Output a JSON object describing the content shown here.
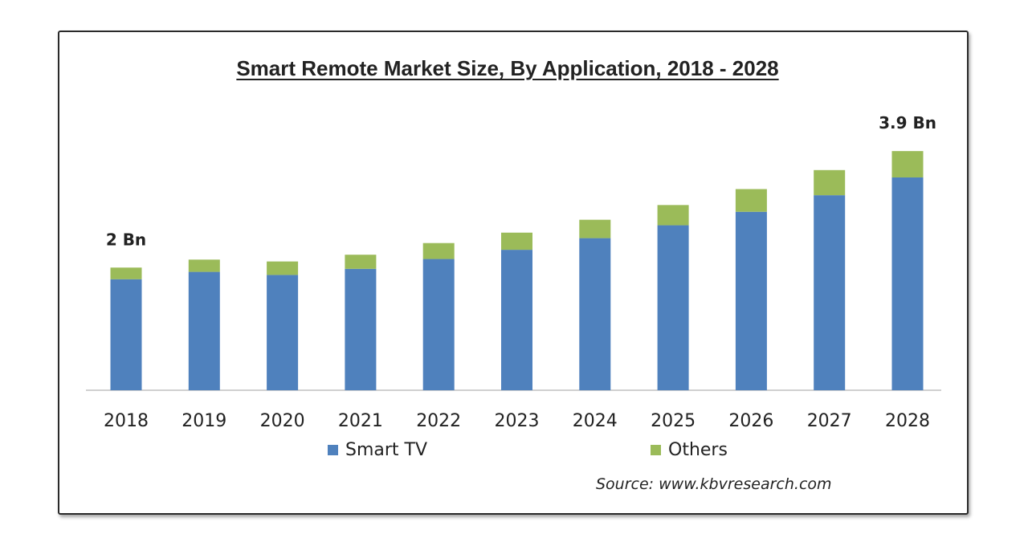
{
  "chart_data": {
    "type": "bar",
    "stacked": true,
    "title": "Smart Remote Market Size, By Application, 2018 - 2028",
    "categories": [
      "2018",
      "2019",
      "2020",
      "2021",
      "2022",
      "2023",
      "2024",
      "2025",
      "2026",
      "2027",
      "2028"
    ],
    "series": [
      {
        "name": "Smart TV",
        "color": "#4F81BD",
        "values": [
          1.81,
          1.93,
          1.88,
          1.98,
          2.14,
          2.29,
          2.48,
          2.69,
          2.91,
          3.18,
          3.47
        ]
      },
      {
        "name": "Others",
        "color": "#9BBB59",
        "values": [
          0.19,
          0.2,
          0.22,
          0.23,
          0.26,
          0.28,
          0.3,
          0.33,
          0.37,
          0.41,
          0.43
        ]
      }
    ],
    "data_labels": [
      {
        "category": "2018",
        "text": "2 Bn"
      },
      {
        "category": "2028",
        "text": "3.9 Bn"
      }
    ],
    "ylim": [
      0,
      4.2
    ],
    "grid": false,
    "legend_position": "bottom",
    "source": "Source:  www.kbvresearch.com"
  }
}
